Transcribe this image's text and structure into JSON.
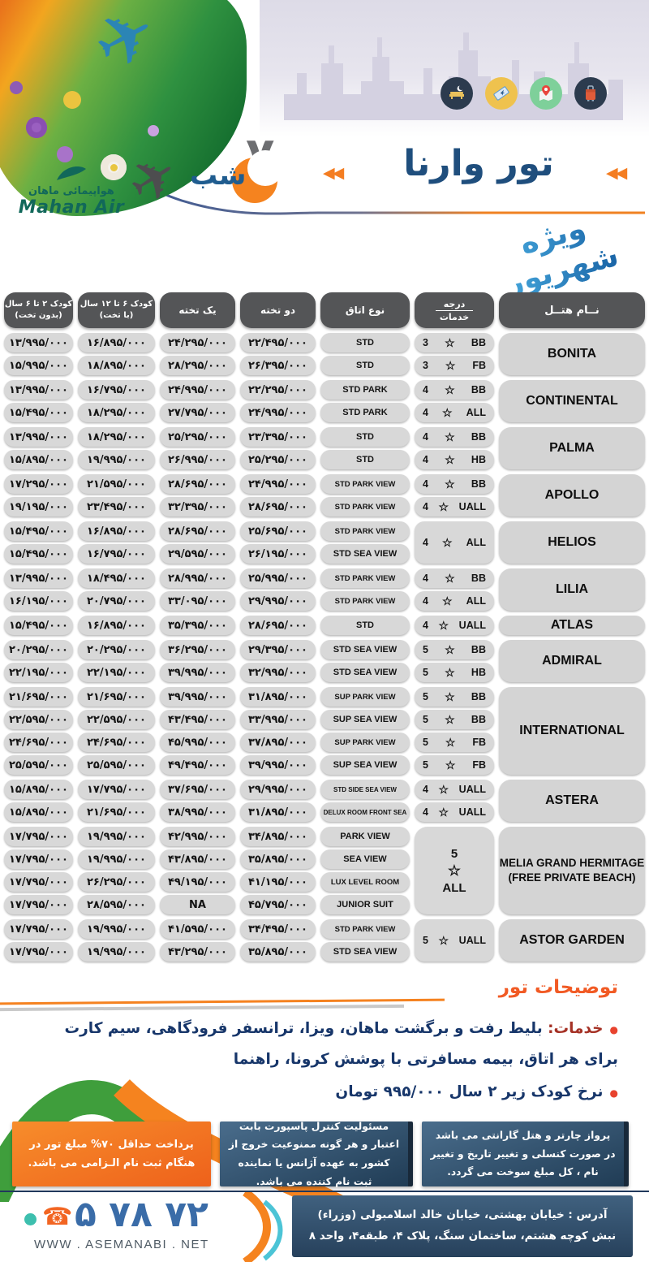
{
  "header": {
    "title": "تور وارنا",
    "nights_number": "۷",
    "nights_label": "شب",
    "brand_fa": "هواپیمائی ماهان",
    "brand_en": "Mahan Air",
    "ribbon": "ویژه شهریور",
    "arrow_glyph": "◀◀",
    "plane_glyph": "✈",
    "phone_glyph": "☎",
    "icons": [
      "hotel-bed-night",
      "flight-ticket",
      "map-location-pin",
      "luggage"
    ]
  },
  "table": {
    "headers": {
      "hotel": "نــام هتــل",
      "degree_top": "درجه",
      "degree_bottom": "خدمات",
      "room": "نوع اتاق",
      "double": "دو تخته",
      "single": "یک تخته",
      "child_bed_1": "کودک ۶ تا ۱۲ سال",
      "child_bed_2": "(با تخت)",
      "child_nobed_1": "کودک ۲ تا ۶ سال",
      "child_nobed_2": "(بدون تخت)"
    },
    "star_glyph": "☆",
    "groups": [
      {
        "hotel": "BONITA",
        "rows": [
          {
            "room": "STD",
            "deg": "3",
            "svc": "BB",
            "double": "۲۲/۴۹۵/۰۰۰",
            "single": "۲۴/۲۹۵/۰۰۰",
            "child_bed": "۱۶/۸۹۵/۰۰۰",
            "child_nobed": "۱۳/۹۹۵/۰۰۰"
          },
          {
            "room": "STD",
            "deg": "3",
            "svc": "FB",
            "double": "۲۶/۳۹۵/۰۰۰",
            "single": "۲۸/۲۹۵/۰۰۰",
            "child_bed": "۱۸/۸۹۵/۰۰۰",
            "child_nobed": "۱۵/۹۹۵/۰۰۰"
          }
        ]
      },
      {
        "hotel": "CONTINENTAL",
        "rows": [
          {
            "room": "STD PARK",
            "deg": "4",
            "svc": "BB",
            "double": "۲۲/۲۹۵/۰۰۰",
            "single": "۲۴/۹۹۵/۰۰۰",
            "child_bed": "۱۶/۷۹۵/۰۰۰",
            "child_nobed": "۱۳/۹۹۵/۰۰۰"
          },
          {
            "room": "STD PARK",
            "deg": "4",
            "svc": "ALL",
            "double": "۲۴/۹۹۵/۰۰۰",
            "single": "۲۷/۷۹۵/۰۰۰",
            "child_bed": "۱۸/۲۹۵/۰۰۰",
            "child_nobed": "۱۵/۴۹۵/۰۰۰"
          }
        ]
      },
      {
        "hotel": "PALMA",
        "rows": [
          {
            "room": "STD",
            "deg": "4",
            "svc": "BB",
            "double": "۲۳/۳۹۵/۰۰۰",
            "single": "۲۵/۲۹۵/۰۰۰",
            "child_bed": "۱۸/۲۹۵/۰۰۰",
            "child_nobed": "۱۳/۹۹۵/۰۰۰"
          },
          {
            "room": "STD",
            "deg": "4",
            "svc": "HB",
            "double": "۲۵/۲۹۵/۰۰۰",
            "single": "۲۶/۹۹۵/۰۰۰",
            "child_bed": "۱۹/۹۹۵/۰۰۰",
            "child_nobed": "۱۵/۸۹۵/۰۰۰"
          }
        ]
      },
      {
        "hotel": "APOLLO",
        "rows": [
          {
            "room": "STD PARK VIEW",
            "deg": "4",
            "svc": "BB",
            "double": "۲۴/۹۹۵/۰۰۰",
            "single": "۲۸/۶۹۵/۰۰۰",
            "child_bed": "۲۱/۵۹۵/۰۰۰",
            "child_nobed": "۱۷/۲۹۵/۰۰۰"
          },
          {
            "room": "STD PARK VIEW",
            "deg": "4",
            "svc": "UALL",
            "double": "۲۸/۶۹۵/۰۰۰",
            "single": "۳۲/۳۹۵/۰۰۰",
            "child_bed": "۲۳/۴۹۵/۰۰۰",
            "child_nobed": "۱۹/۱۹۵/۰۰۰"
          }
        ]
      },
      {
        "hotel": "HELIOS",
        "merged": {
          "deg": "4",
          "svc": "ALL",
          "stacked": false
        },
        "rows": [
          {
            "room": "STD PARK VIEW",
            "double": "۲۵/۶۹۵/۰۰۰",
            "single": "۲۸/۶۹۵/۰۰۰",
            "child_bed": "۱۶/۸۹۵/۰۰۰",
            "child_nobed": "۱۵/۴۹۵/۰۰۰"
          },
          {
            "room": "STD SEA VIEW",
            "double": "۲۶/۱۹۵/۰۰۰",
            "single": "۲۹/۵۹۵/۰۰۰",
            "child_bed": "۱۶/۷۹۵/۰۰۰",
            "child_nobed": "۱۵/۴۹۵/۰۰۰"
          }
        ]
      },
      {
        "hotel": "LILIA",
        "rows": [
          {
            "room": "STD PARK VIEW",
            "deg": "4",
            "svc": "BB",
            "double": "۲۵/۹۹۵/۰۰۰",
            "single": "۲۸/۹۹۵/۰۰۰",
            "child_bed": "۱۸/۴۹۵/۰۰۰",
            "child_nobed": "۱۳/۹۹۵/۰۰۰"
          },
          {
            "room": "STD PARK VIEW",
            "deg": "4",
            "svc": "ALL",
            "double": "۲۹/۹۹۵/۰۰۰",
            "single": "۳۳/۰۹۵/۰۰۰",
            "child_bed": "۲۰/۷۹۵/۰۰۰",
            "child_nobed": "۱۶/۱۹۵/۰۰۰"
          }
        ]
      },
      {
        "hotel": "ATLAS",
        "rows": [
          {
            "room": "STD",
            "deg": "4",
            "svc": "UALL",
            "double": "۲۸/۶۹۵/۰۰۰",
            "single": "۳۵/۳۹۵/۰۰۰",
            "child_bed": "۱۶/۸۹۵/۰۰۰",
            "child_nobed": "۱۵/۴۹۵/۰۰۰"
          }
        ]
      },
      {
        "hotel": "ADMIRAL",
        "rows": [
          {
            "room": "STD SEA VIEW",
            "deg": "5",
            "svc": "BB",
            "double": "۲۹/۳۹۵/۰۰۰",
            "single": "۳۶/۲۹۵/۰۰۰",
            "child_bed": "۲۰/۲۹۵/۰۰۰",
            "child_nobed": "۲۰/۲۹۵/۰۰۰"
          },
          {
            "room": "STD SEA VIEW",
            "deg": "5",
            "svc": "HB",
            "double": "۳۲/۹۹۵/۰۰۰",
            "single": "۳۹/۹۹۵/۰۰۰",
            "child_bed": "۲۲/۱۹۵/۰۰۰",
            "child_nobed": "۲۲/۱۹۵/۰۰۰"
          }
        ]
      },
      {
        "hotel": "INTERNATIONAL",
        "rows": [
          {
            "room": "SUP PARK VIEW",
            "deg": "5",
            "svc": "BB",
            "double": "۳۱/۸۹۵/۰۰۰",
            "single": "۳۹/۹۹۵/۰۰۰",
            "child_bed": "۲۱/۶۹۵/۰۰۰",
            "child_nobed": "۲۱/۶۹۵/۰۰۰"
          },
          {
            "room": "SUP SEA VIEW",
            "deg": "5",
            "svc": "BB",
            "double": "۳۳/۹۹۵/۰۰۰",
            "single": "۴۳/۴۹۵/۰۰۰",
            "child_bed": "۲۲/۵۹۵/۰۰۰",
            "child_nobed": "۲۲/۵۹۵/۰۰۰"
          },
          {
            "room": "SUP PARK VIEW",
            "deg": "5",
            "svc": "FB",
            "double": "۳۷/۸۹۵/۰۰۰",
            "single": "۴۵/۹۹۵/۰۰۰",
            "child_bed": "۲۴/۶۹۵/۰۰۰",
            "child_nobed": "۲۴/۶۹۵/۰۰۰"
          },
          {
            "room": "SUP SEA VIEW",
            "deg": "5",
            "svc": "FB",
            "double": "۳۹/۹۹۵/۰۰۰",
            "single": "۴۹/۴۹۵/۰۰۰",
            "child_bed": "۲۵/۵۹۵/۰۰۰",
            "child_nobed": "۲۵/۵۹۵/۰۰۰"
          }
        ]
      },
      {
        "hotel": "ASTERA",
        "rows": [
          {
            "room": "STD SIDE SEA VIEW",
            "deg": "4",
            "svc": "UALL",
            "double": "۲۹/۹۹۵/۰۰۰",
            "single": "۳۷/۶۹۵/۰۰۰",
            "child_bed": "۱۷/۷۹۵/۰۰۰",
            "child_nobed": "۱۵/۸۹۵/۰۰۰"
          },
          {
            "room": "DELUX ROOM FRONT SEA",
            "deg": "4",
            "svc": "UALL",
            "double": "۳۱/۸۹۵/۰۰۰",
            "single": "۳۸/۹۹۵/۰۰۰",
            "child_bed": "۲۱/۶۹۵/۰۰۰",
            "child_nobed": "۱۵/۸۹۵/۰۰۰"
          }
        ]
      },
      {
        "hotel": "MELIA GRAND HERMITAGE",
        "hotel_sub": "(FREE PRIVATE BEACH)",
        "merged": {
          "deg": "5",
          "svc": "ALL",
          "stacked": true
        },
        "rows": [
          {
            "room": "PARK VIEW",
            "double": "۳۴/۸۹۵/۰۰۰",
            "single": "۴۲/۹۹۵/۰۰۰",
            "child_bed": "۱۹/۹۹۵/۰۰۰",
            "child_nobed": "۱۷/۷۹۵/۰۰۰"
          },
          {
            "room": "SEA VIEW",
            "double": "۳۵/۸۹۵/۰۰۰",
            "single": "۴۳/۸۹۵/۰۰۰",
            "child_bed": "۱۹/۹۹۵/۰۰۰",
            "child_nobed": "۱۷/۷۹۵/۰۰۰"
          },
          {
            "room": "LUX LEVEL ROOM",
            "double": "۴۱/۱۹۵/۰۰۰",
            "single": "۴۹/۱۹۵/۰۰۰",
            "child_bed": "۲۶/۲۹۵/۰۰۰",
            "child_nobed": "۱۷/۷۹۵/۰۰۰"
          },
          {
            "room": "JUNIOR SUIT",
            "double": "۴۵/۷۹۵/۰۰۰",
            "single": "NA",
            "child_bed": "۲۸/۵۹۵/۰۰۰",
            "child_nobed": "۱۷/۷۹۵/۰۰۰"
          }
        ]
      },
      {
        "hotel": "ASTOR GARDEN",
        "merged": {
          "deg": "5",
          "svc": "UALL",
          "stacked": false
        },
        "rows": [
          {
            "room": "STD PARK VIEW",
            "double": "۳۴/۴۹۵/۰۰۰",
            "single": "۴۱/۵۹۵/۰۰۰",
            "child_bed": "۱۹/۹۹۵/۰۰۰",
            "child_nobed": "۱۷/۷۹۵/۰۰۰"
          },
          {
            "room": "STD SEA VIEW",
            "double": "۳۵/۸۹۵/۰۰۰",
            "single": "۴۳/۲۹۵/۰۰۰",
            "child_bed": "۱۹/۹۹۵/۰۰۰",
            "child_nobed": "۱۷/۷۹۵/۰۰۰"
          }
        ]
      }
    ]
  },
  "notes": {
    "heading": "توضیحات تور",
    "bullet1_label": "خدمات:",
    "bullet1_text": "بلیط رفت و برگشت ماهان، ویزا، ترانسفر فرودگاهی، سیم کارت برای هر اتاق، بیمه مسافرتی با پوشش کرونا، راهنما",
    "bullet2": "نرخ کودک زیر ۲ سال ۹۹۵/۰۰۰ تومان"
  },
  "footer_boxes": {
    "left_orange": "پرداخت حداقل ۷۰% مبلغ تور در هنگام ثبت نام الـزامی می باشد.",
    "middle_blue": "مسئولیت کنترل پاسپورت بابت اعتبار و هر گونه ممنوعیت خروج از کشور به عهده آژانس یا نماینده ثبت نام کننده می باشد.",
    "right_blue": "پرواز چارتر و هتل گارانتی می باشد در صورت کنسلی و تغییر تاریخ و تغییر نام ، کل مبلغ سوخت می گردد."
  },
  "footer": {
    "phone": "۵ ۷۸ ۷۲",
    "website": "WWW . ASEMANABI . NET",
    "address_line1": "آدرس : خیابان بهشتی، خیابان خالد اسلامبولی (وزراء)",
    "address_line2": "نبش کوچه هشتم، ساختمان سنگ، پلاک ۴، طبقه۴، واحد ۸"
  }
}
